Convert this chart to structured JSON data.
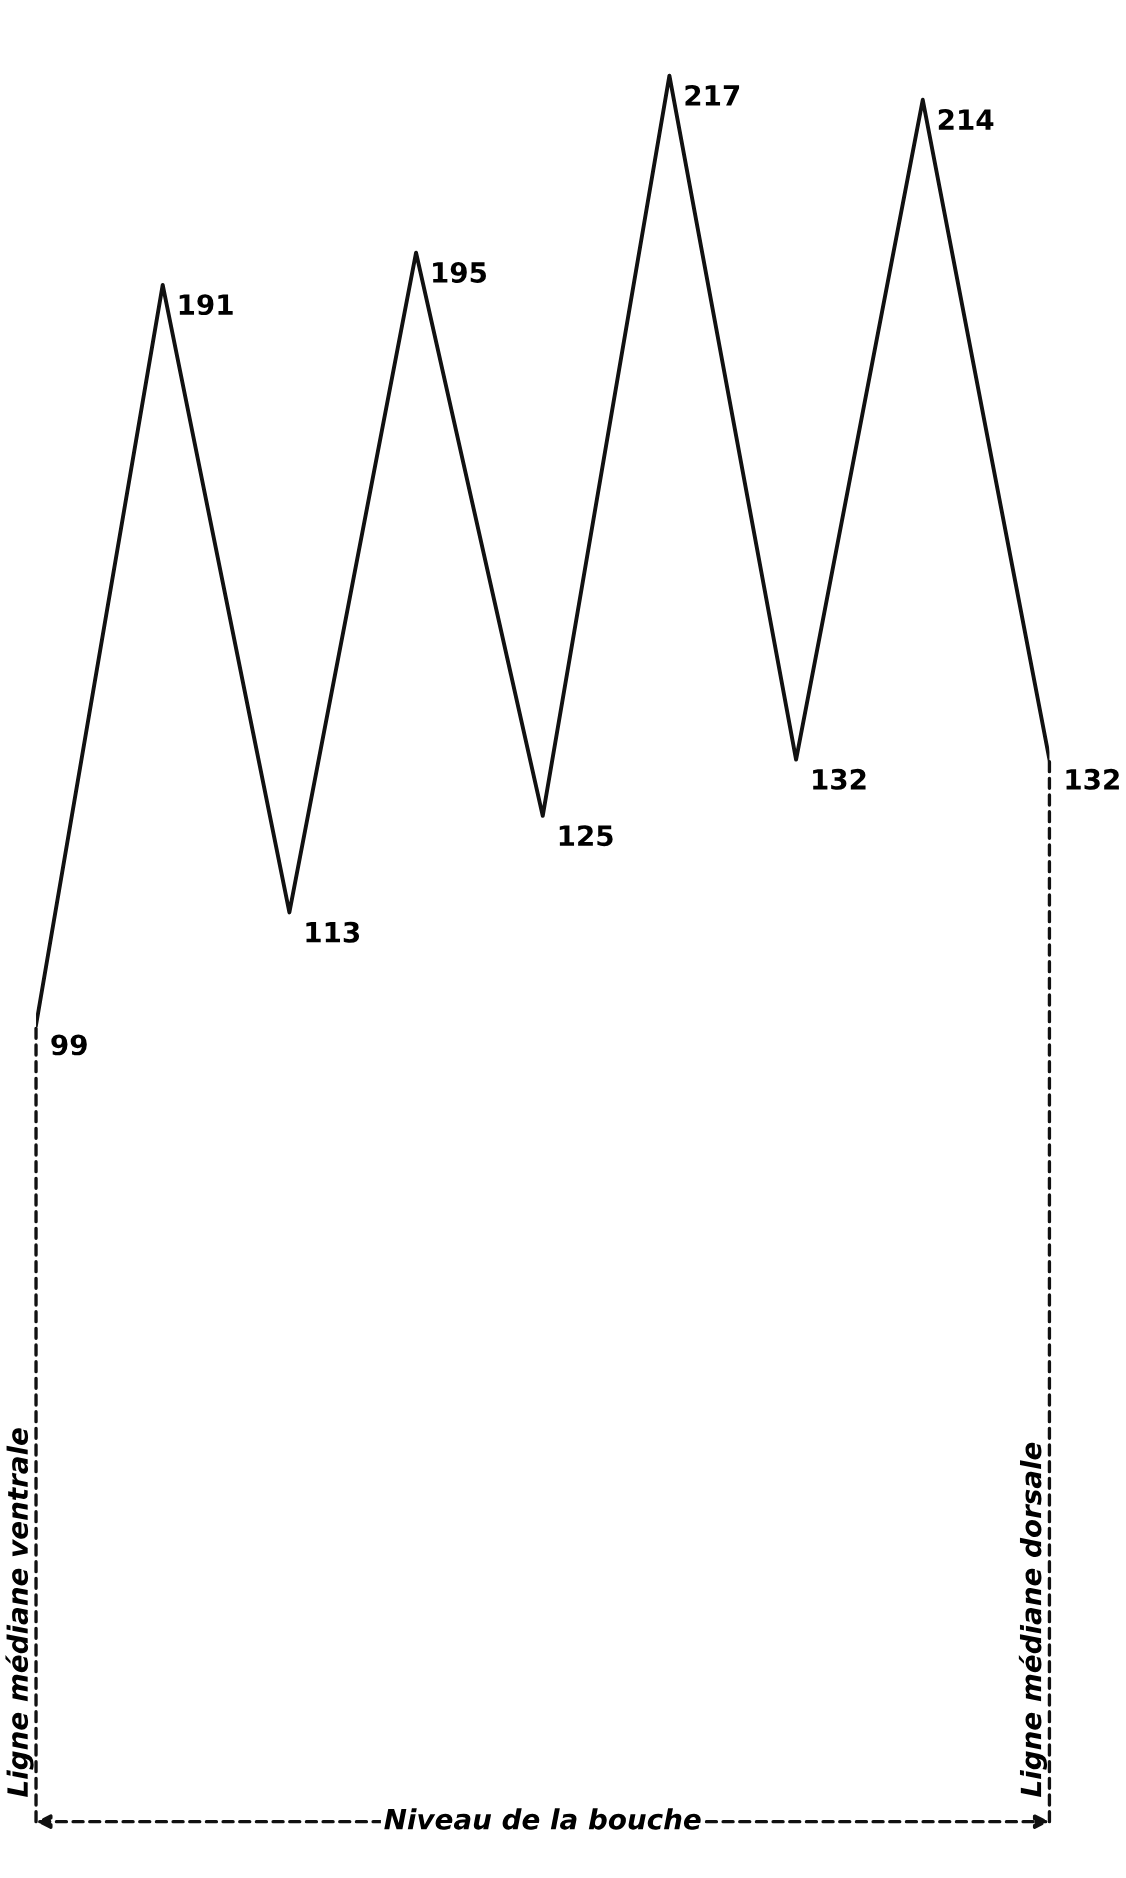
{
  "chart_data": {
    "type": "line",
    "categories": [
      null,
      null,
      null,
      null,
      null,
      null,
      null,
      null,
      null
    ],
    "values": [
      99,
      191,
      113,
      195,
      125,
      217,
      132,
      214,
      132
    ],
    "color": "#111111",
    "data_labels": true,
    "line_style": "solid",
    "annotations": [
      "Ligne médiane ventrale",
      "Ligne médiane dorsale",
      "Niveau de la bouche"
    ]
  }
}
